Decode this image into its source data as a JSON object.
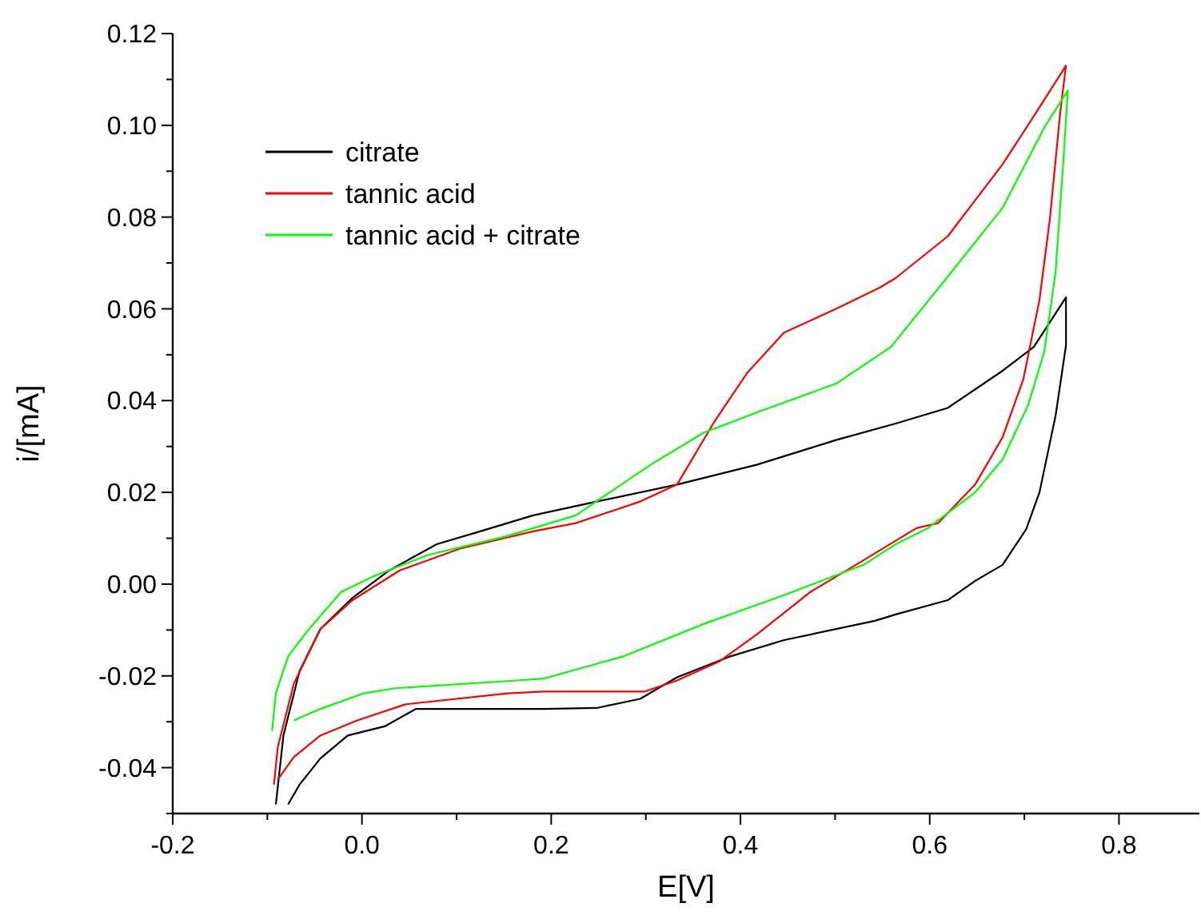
{
  "chart_data": {
    "type": "line",
    "xlabel": "E[V]",
    "ylabel": "i/[mA]",
    "xlim": [
      -0.2,
      0.885
    ],
    "ylim": [
      -0.05,
      0.12
    ],
    "xticks": [
      -0.2,
      {
        "value": -0.1,
        "label": null
      },
      "0.0",
      {
        "value": 0.1,
        "label": null
      },
      0.2,
      {
        "value": 0.3,
        "label": null
      },
      0.4,
      {
        "value": 0.5,
        "label": null
      },
      0.6,
      {
        "value": 0.7,
        "label": null
      },
      0.8
    ],
    "yticks": [
      {
        "value": -0.05,
        "label": null
      },
      -0.04,
      {
        "value": -0.03,
        "label": null
      },
      -0.02,
      {
        "value": -0.01,
        "label": null
      },
      {
        "value": 0,
        "label": "0.00"
      },
      {
        "value": 0.01,
        "label": null
      },
      0.02,
      {
        "value": 0.03,
        "label": null
      },
      0.04,
      {
        "value": 0.05,
        "label": null
      },
      0.06,
      {
        "value": 0.07,
        "label": null
      },
      0.08,
      {
        "value": 0.09,
        "label": null
      },
      {
        "value": 0.1,
        "label": "0.10"
      },
      {
        "value": 0.11,
        "label": null
      },
      0.12
    ],
    "legend": "top left",
    "series": [
      {
        "name": "citrate",
        "color": "#000000",
        "x": [
          -0.091,
          -0.083,
          -0.066,
          -0.044,
          -0.01,
          0.029,
          0.079,
          0.125,
          0.181,
          0.248,
          0.333,
          0.417,
          0.501,
          0.564,
          0.619,
          0.677,
          0.71,
          0.744,
          0.744,
          0.733,
          0.716,
          0.702,
          0.677,
          0.648,
          0.619,
          0.564,
          0.542,
          0.446,
          0.39,
          0.333,
          0.294,
          0.248,
          0.192,
          0.17,
          0.057,
          0.024,
          -0.015,
          -0.044,
          -0.066,
          -0.078
        ],
        "values": [
          -0.048,
          -0.033,
          -0.019,
          -0.0098,
          -0.003,
          0.003,
          0.0087,
          0.0115,
          0.015,
          0.018,
          0.0217,
          0.026,
          0.0314,
          0.035,
          0.0384,
          0.0465,
          0.0517,
          0.0625,
          0.052,
          0.0367,
          0.02,
          0.012,
          0.0042,
          0.0007,
          -0.0035,
          -0.0066,
          -0.008,
          -0.0122,
          -0.0157,
          -0.0203,
          -0.025,
          -0.027,
          -0.0272,
          -0.0272,
          -0.0272,
          -0.031,
          -0.033,
          -0.038,
          -0.0437,
          -0.048
        ]
      },
      {
        "name": "tannic acid",
        "color": "#ff0000",
        "x": [
          -0.093,
          -0.089,
          -0.072,
          -0.044,
          -0.01,
          0.04,
          0.103,
          0.181,
          0.226,
          0.294,
          0.333,
          0.373,
          0.407,
          0.446,
          0.501,
          0.547,
          0.564,
          0.619,
          0.677,
          0.71,
          0.744,
          0.738,
          0.727,
          0.716,
          0.699,
          0.677,
          0.648,
          0.609,
          0.586,
          0.53,
          0.474,
          0.417,
          0.378,
          0.333,
          0.299,
          0.192,
          0.154,
          0.046,
          -0.005,
          -0.044,
          -0.072,
          -0.089
        ],
        "values": [
          -0.0437,
          -0.0356,
          -0.0217,
          -0.0098,
          -0.0035,
          0.003,
          0.0077,
          0.0115,
          0.0133,
          0.018,
          0.0217,
          0.0356,
          0.046,
          0.0548,
          0.06,
          0.0646,
          0.0667,
          0.0758,
          0.0915,
          0.102,
          0.113,
          0.103,
          0.0796,
          0.062,
          0.0447,
          0.032,
          0.0217,
          0.0133,
          0.0122,
          0.0052,
          -0.0017,
          -0.011,
          -0.0168,
          -0.021,
          -0.0234,
          -0.0234,
          -0.0238,
          -0.0262,
          -0.0297,
          -0.033,
          -0.0377,
          -0.0426
        ]
      },
      {
        "name": "tannic acid + citrate",
        "color": "#00ff00",
        "x": [
          -0.095,
          -0.091,
          -0.078,
          -0.056,
          -0.022,
          0.012,
          0.069,
          0.154,
          0.226,
          0.305,
          0.361,
          0.417,
          0.501,
          0.559,
          0.619,
          0.677,
          0.721,
          0.746,
          0.741,
          0.733,
          0.721,
          0.704,
          0.677,
          0.648,
          0.598,
          0.564,
          0.53,
          0.446,
          0.361,
          0.277,
          0.192,
          0.164,
          0.035,
          0.002,
          -0.044,
          -0.072
        ],
        "values": [
          -0.032,
          -0.0238,
          -0.0157,
          -0.0098,
          -0.0017,
          0.0017,
          0.0063,
          0.0105,
          0.015,
          0.026,
          0.033,
          0.0374,
          0.0437,
          0.0517,
          0.067,
          0.082,
          0.0995,
          0.1076,
          0.0915,
          0.068,
          0.0506,
          0.039,
          0.0272,
          0.02,
          0.0122,
          0.0087,
          0.0042,
          -0.0024,
          -0.0087,
          -0.0157,
          -0.0206,
          -0.021,
          -0.0227,
          -0.0238,
          -0.0272,
          -0.0297
        ]
      }
    ]
  }
}
